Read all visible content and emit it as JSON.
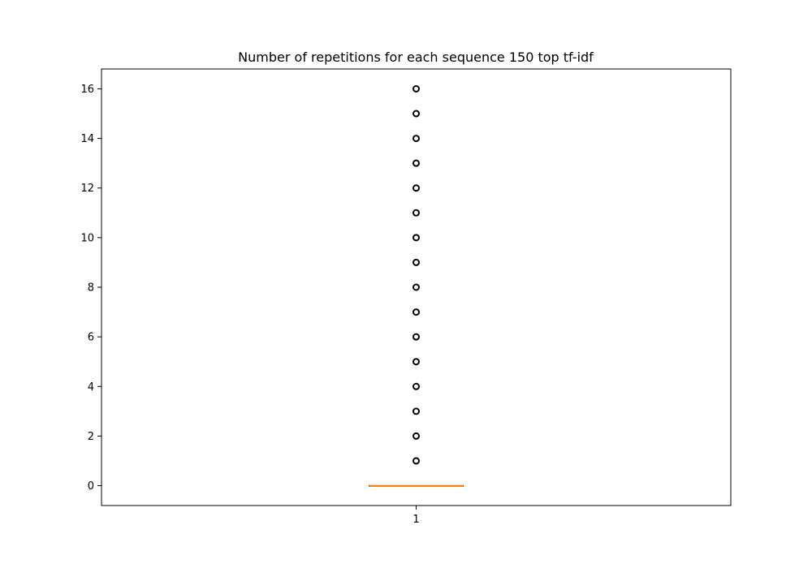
{
  "chart_data": {
    "type": "box",
    "title": "Number of repetitions for each sequence 150 top tf-idf",
    "xlabel": "",
    "ylabel": "",
    "categories": [
      "1"
    ],
    "y_ticks": [
      0,
      2,
      4,
      6,
      8,
      10,
      12,
      14,
      16
    ],
    "ylim": [
      -0.8,
      16.8
    ],
    "grid": false,
    "boxes": [
      {
        "category": "1",
        "whisker_low": 0,
        "q1": 0,
        "median": 0,
        "q3": 0,
        "whisker_high": 0,
        "outliers": [
          1,
          2,
          3,
          4,
          5,
          6,
          7,
          8,
          9,
          10,
          11,
          12,
          13,
          14,
          15,
          16
        ]
      }
    ],
    "colors": {
      "box": "#000000",
      "median": "#ff7f0e",
      "outlier_edge": "#000000"
    }
  }
}
